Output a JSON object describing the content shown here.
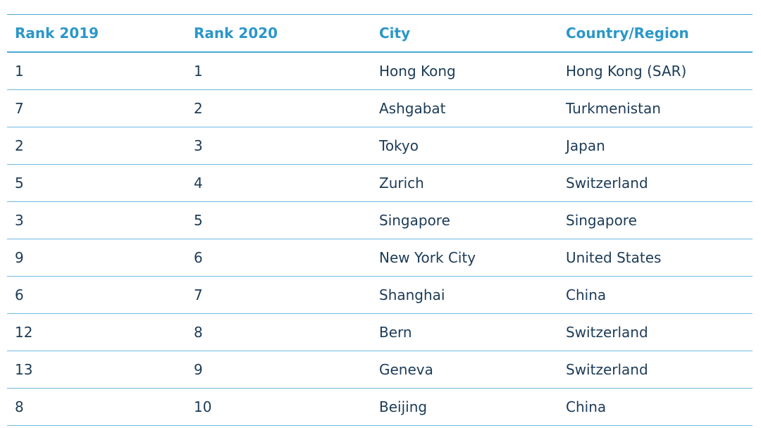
{
  "table": {
    "header": [
      "Rank 2019",
      "Rank 2020",
      "City",
      "Country/Region"
    ],
    "rows": [
      [
        "1",
        "1",
        "Hong Kong",
        "Hong Kong (SAR)"
      ],
      [
        "7",
        "2",
        "Ashgabat",
        "Turkmenistan"
      ],
      [
        "2",
        "3",
        "Tokyo",
        "Japan"
      ],
      [
        "5",
        "4",
        "Zurich",
        "Switzerland"
      ],
      [
        "3",
        "5",
        "Singapore",
        "Singapore"
      ],
      [
        "9",
        "6",
        "New York City",
        "United States"
      ],
      [
        "6",
        "7",
        "Shanghai",
        "China"
      ],
      [
        "12",
        "8",
        "Bern",
        "Switzerland"
      ],
      [
        "13",
        "9",
        "Geneva",
        "Switzerland"
      ],
      [
        "8",
        "10",
        "Beijing",
        "China"
      ]
    ]
  }
}
